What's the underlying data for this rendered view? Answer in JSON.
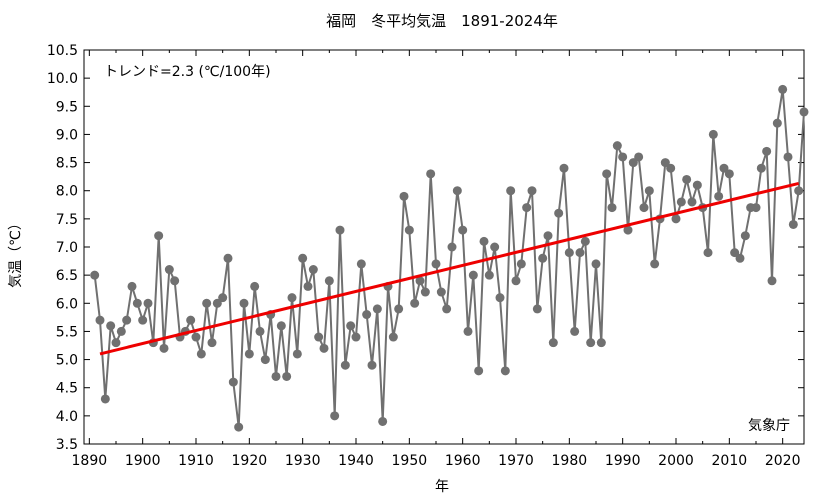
{
  "chart_data": {
    "type": "line",
    "title": "福岡　冬平均気温　1891-2024年",
    "xlabel": "年",
    "ylabel": "気温（℃）",
    "trend_label": "トレンド=2.3 (℃/100年)",
    "source": "気象庁",
    "xlim": [
      1889,
      2024
    ],
    "ylim": [
      3.5,
      10.5
    ],
    "x_ticks": [
      "1890",
      "1900",
      "1910",
      "1920",
      "1930",
      "1940",
      "1950",
      "1960",
      "1970",
      "1980",
      "1990",
      "2000",
      "2010",
      "2020"
    ],
    "y_ticks": [
      "3.5",
      "4.0",
      "4.5",
      "5.0",
      "5.5",
      "6.0",
      "6.5",
      "7.0",
      "7.5",
      "8.0",
      "8.5",
      "9.0",
      "9.5",
      "10.0",
      "10.5"
    ],
    "grid": false,
    "series": [
      {
        "color": "#707070",
        "x": [
          1891,
          1892,
          1893,
          1894,
          1895,
          1896,
          1897,
          1898,
          1899,
          1900,
          1901,
          1902,
          1903,
          1904,
          1905,
          1906,
          1907,
          1908,
          1909,
          1910,
          1911,
          1912,
          1913,
          1914,
          1915,
          1916,
          1917,
          1918,
          1919,
          1920,
          1921,
          1922,
          1923,
          1924,
          1925,
          1926,
          1927,
          1928,
          1929,
          1930,
          1931,
          1932,
          1933,
          1934,
          1935,
          1936,
          1937,
          1938,
          1939,
          1940,
          1941,
          1942,
          1943,
          1944,
          1945,
          1946,
          1947,
          1948,
          1949,
          1950,
          1951,
          1952,
          1953,
          1954,
          1955,
          1956,
          1957,
          1958,
          1959,
          1960,
          1961,
          1962,
          1963,
          1964,
          1965,
          1966,
          1967,
          1968,
          1969,
          1970,
          1971,
          1972,
          1973,
          1974,
          1975,
          1976,
          1977,
          1978,
          1979,
          1980,
          1981,
          1982,
          1983,
          1984,
          1985,
          1986,
          1987,
          1988,
          1989,
          1990,
          1991,
          1992,
          1993,
          1994,
          1995,
          1996,
          1997,
          1998,
          1999,
          2000,
          2001,
          2002,
          2003,
          2004,
          2005,
          2006,
          2007,
          2008,
          2009,
          2010,
          2011,
          2012,
          2013,
          2014,
          2015,
          2016,
          2017,
          2018,
          2019,
          2020,
          2021,
          2022,
          2023,
          2024
        ],
        "values": [
          6.5,
          5.7,
          4.3,
          5.6,
          5.3,
          5.5,
          5.7,
          6.3,
          6.0,
          5.7,
          6.0,
          5.3,
          7.2,
          5.2,
          6.6,
          6.4,
          5.4,
          5.5,
          5.7,
          5.4,
          5.1,
          6.0,
          5.3,
          6.0,
          6.1,
          6.8,
          4.6,
          3.8,
          6.0,
          5.1,
          6.3,
          5.5,
          5.0,
          5.8,
          4.7,
          5.6,
          4.7,
          6.1,
          5.1,
          6.8,
          6.3,
          6.6,
          5.4,
          5.2,
          6.4,
          4.0,
          7.3,
          4.9,
          5.6,
          5.4,
          6.7,
          5.8,
          4.9,
          5.9,
          3.9,
          6.3,
          5.4,
          5.9,
          7.9,
          7.3,
          6.0,
          6.4,
          6.2,
          8.3,
          6.7,
          6.2,
          5.9,
          7.0,
          8.0,
          7.3,
          5.5,
          6.5,
          4.8,
          7.1,
          6.5,
          7.0,
          6.1,
          4.8,
          8.0,
          6.4,
          6.7,
          7.7,
          8.0,
          5.9,
          6.8,
          7.2,
          5.3,
          7.6,
          8.4,
          6.9,
          5.5,
          6.9,
          7.1,
          5.3,
          6.7,
          5.3,
          8.3,
          7.7,
          8.8,
          8.6,
          7.3,
          8.5,
          8.6,
          7.7,
          8.0,
          6.7,
          7.5,
          8.5,
          8.4,
          7.5,
          7.8,
          8.2,
          7.8,
          8.1,
          7.7,
          6.9,
          9.0,
          7.9,
          8.4,
          8.3,
          6.9,
          6.8,
          7.2,
          7.7,
          7.7,
          8.4,
          8.7,
          6.4,
          9.2,
          9.8,
          8.6,
          7.4,
          8.0,
          9.4
        ]
      },
      {
        "color": "#ee0000",
        "x": [
          1892,
          2023
        ],
        "values": [
          5.1,
          8.13
        ]
      }
    ]
  }
}
